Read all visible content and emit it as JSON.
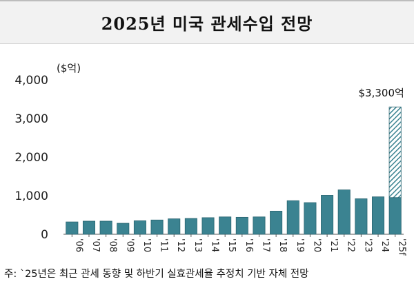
{
  "header": {
    "title": "2025년 미국 관세수입 전망"
  },
  "footnote": "주: `25년은 최근 관세 동향 및 하반기 실효관세율 추정치 기반 자체 전망",
  "chart_data": {
    "type": "bar",
    "unit_label": "($억)",
    "categories": [
      "'06",
      "'07",
      "'08",
      "'09",
      "'10",
      "'11",
      "'12",
      "'13",
      "'14",
      "'15",
      "'16",
      "'17",
      "'18",
      "'19",
      "'20",
      "'21",
      "'22",
      "'23",
      "'24",
      "'25f"
    ],
    "values": [
      320,
      340,
      340,
      285,
      350,
      370,
      400,
      410,
      430,
      450,
      440,
      450,
      600,
      870,
      820,
      1010,
      1150,
      920,
      970,
      950
    ],
    "forecast_total": 3300,
    "forecast_index": 19,
    "annotation": "$3,300억",
    "ylim": [
      0,
      4000
    ],
    "yticks": [
      0,
      1000,
      2000,
      3000,
      4000
    ],
    "ytick_labels": [
      "0",
      "1,000",
      "2,000",
      "3,000",
      "4,000"
    ],
    "colors": {
      "bar": "#3b8391",
      "bar_stroke": "#2a6470",
      "forecast_hatch": "#3b8391"
    },
    "grid": false,
    "legend": "none"
  }
}
